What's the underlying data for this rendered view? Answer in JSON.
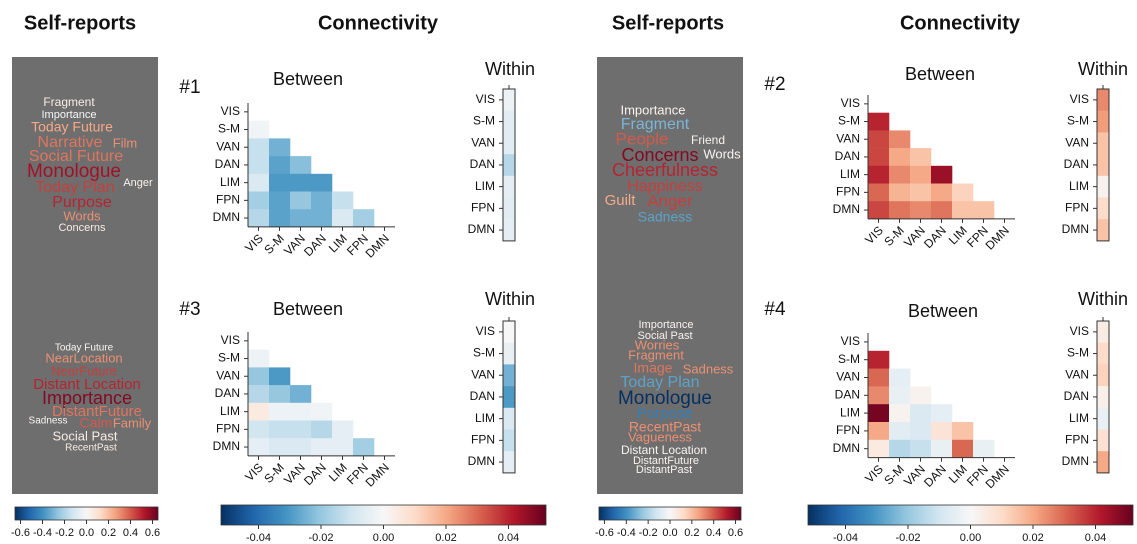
{
  "titles": [
    "Self-reports",
    "Connectivity",
    "Self-reports",
    "Connectivity"
  ],
  "colormap": [
    "#053061",
    "#2166ac",
    "#4393c3",
    "#92c5de",
    "#d1e5f0",
    "#f7f7f7",
    "#fddbc7",
    "#f4a582",
    "#d6604d",
    "#b2182b",
    "#67001f"
  ],
  "wordclouds": [
    {
      "words": [
        {
          "text": "Fragment",
          "value": 0.05
        },
        {
          "text": "Importance",
          "value": 0.0
        },
        {
          "text": "Today Future",
          "value": 0.25
        },
        {
          "text": "Narrative",
          "value": 0.35
        },
        {
          "text": "Film",
          "value": 0.3
        },
        {
          "text": "Social Future",
          "value": 0.35
        },
        {
          "text": "Monologue",
          "value": 0.55
        },
        {
          "text": "Anger",
          "value": 0.02
        },
        {
          "text": "Today Plan",
          "value": 0.45
        },
        {
          "text": "Purpose",
          "value": 0.5
        },
        {
          "text": "Words",
          "value": 0.3
        },
        {
          "text": "Concerns",
          "value": 0.05
        }
      ]
    },
    {
      "words": [
        {
          "text": "Today Future",
          "value": 0.02
        },
        {
          "text": "NearLocation",
          "value": 0.3
        },
        {
          "text": "NearFuture",
          "value": 0.45
        },
        {
          "text": "Distant Location",
          "value": 0.5
        },
        {
          "text": "Importance",
          "value": 0.6
        },
        {
          "text": "DistantFuture",
          "value": 0.35
        },
        {
          "text": "Sadness",
          "value": 0.02
        },
        {
          "text": "Calm",
          "value": 0.4
        },
        {
          "text": "Family",
          "value": 0.3
        },
        {
          "text": "Social Past",
          "value": 0.05
        },
        {
          "text": "RecentPast",
          "value": 0.05
        }
      ]
    },
    {
      "words": [
        {
          "text": "Importance",
          "value": 0.02
        },
        {
          "text": "Fragment",
          "value": -0.3
        },
        {
          "text": "People",
          "value": 0.4
        },
        {
          "text": "Friend",
          "value": 0.02
        },
        {
          "text": "Concerns",
          "value": 0.6
        },
        {
          "text": "Words",
          "value": 0.02
        },
        {
          "text": "Cheerfulness",
          "value": 0.5
        },
        {
          "text": "Happiness",
          "value": 0.45
        },
        {
          "text": "Guilt",
          "value": 0.25
        },
        {
          "text": "Anger",
          "value": 0.45
        },
        {
          "text": "Sadness",
          "value": -0.35
        }
      ]
    },
    {
      "words": [
        {
          "text": "Importance",
          "value": 0.02
        },
        {
          "text": "Social Past",
          "value": 0.02
        },
        {
          "text": "Worries",
          "value": 0.3
        },
        {
          "text": "Fragment",
          "value": 0.3
        },
        {
          "text": "Image",
          "value": 0.35
        },
        {
          "text": "Sadness",
          "value": 0.3
        },
        {
          "text": "Today Plan",
          "value": -0.35
        },
        {
          "text": "Monologue",
          "value": -0.65
        },
        {
          "text": "Purpose",
          "value": -0.45
        },
        {
          "text": "RecentPast",
          "value": 0.3
        },
        {
          "text": "Vagueness",
          "value": 0.3
        },
        {
          "text": "Distant Location",
          "value": 0.02
        },
        {
          "text": "DistantFuture",
          "value": 0.02
        },
        {
          "text": "DistantPast",
          "value": 0.02
        }
      ]
    }
  ],
  "chart_data": [
    {
      "type": "heatmap",
      "label": "#1",
      "title": "Between",
      "rows": [
        "VIS",
        "S-M",
        "VAN",
        "DAN",
        "LIM",
        "FPN",
        "DMN"
      ],
      "columns": [
        "VIS",
        "S-M",
        "VAN",
        "DAN",
        "LIM",
        "FPN",
        "DMN"
      ],
      "values": [
        [
          null,
          null,
          null,
          null,
          null,
          null,
          null
        ],
        [
          -0.002,
          null,
          null,
          null,
          null,
          null,
          null
        ],
        [
          -0.012,
          -0.025,
          null,
          null,
          null,
          null,
          null
        ],
        [
          -0.012,
          -0.028,
          -0.022,
          null,
          null,
          null,
          null
        ],
        [
          -0.008,
          -0.03,
          -0.03,
          -0.03,
          null,
          null,
          null
        ],
        [
          -0.018,
          -0.028,
          -0.02,
          -0.025,
          -0.012,
          null,
          null
        ],
        [
          -0.015,
          -0.028,
          -0.025,
          -0.025,
          -0.008,
          -0.018,
          null
        ]
      ]
    },
    {
      "type": "heatmap",
      "title": "Within",
      "rows": [
        "VIS",
        "S-M",
        "VAN",
        "DAN",
        "LIM",
        "FPN",
        "DMN"
      ],
      "values": [
        -0.003,
        -0.006,
        -0.006,
        -0.015,
        -0.005,
        -0.006,
        -0.005
      ]
    },
    {
      "type": "heatmap",
      "label": "#3",
      "title": "Between",
      "rows": [
        "VIS",
        "S-M",
        "VAN",
        "DAN",
        "LIM",
        "FPN",
        "DMN"
      ],
      "columns": [
        "VIS",
        "S-M",
        "VAN",
        "DAN",
        "LIM",
        "FPN",
        "DMN"
      ],
      "values": [
        [
          null,
          null,
          null,
          null,
          null,
          null,
          null
        ],
        [
          -0.003,
          null,
          null,
          null,
          null,
          null,
          null
        ],
        [
          -0.02,
          -0.03,
          null,
          null,
          null,
          null,
          null
        ],
        [
          -0.015,
          -0.02,
          -0.025,
          null,
          null,
          null,
          null
        ],
        [
          0.005,
          -0.003,
          -0.003,
          -0.002,
          null,
          null,
          null
        ],
        [
          -0.01,
          -0.012,
          -0.012,
          -0.015,
          -0.005,
          null,
          null
        ],
        [
          -0.005,
          -0.008,
          -0.008,
          -0.005,
          -0.005,
          -0.018,
          null
        ]
      ]
    },
    {
      "type": "heatmap",
      "title": "Within",
      "rows": [
        "VIS",
        "S-M",
        "VAN",
        "DAN",
        "LIM",
        "FPN",
        "DMN"
      ],
      "values": [
        0.0,
        -0.004,
        -0.025,
        -0.03,
        -0.008,
        -0.012,
        -0.005
      ]
    },
    {
      "type": "heatmap",
      "label": "#2",
      "title": "Between",
      "rows": [
        "VIS",
        "S-M",
        "VAN",
        "DAN",
        "LIM",
        "FPN",
        "DMN"
      ],
      "columns": [
        "VIS",
        "S-M",
        "VAN",
        "DAN",
        "LIM",
        "FPN",
        "DMN"
      ],
      "values": [
        [
          null,
          null,
          null,
          null,
          null,
          null,
          null
        ],
        [
          0.04,
          null,
          null,
          null,
          null,
          null,
          null
        ],
        [
          0.035,
          0.025,
          null,
          null,
          null,
          null,
          null
        ],
        [
          0.035,
          0.02,
          0.015,
          null,
          null,
          null,
          null
        ],
        [
          0.04,
          0.025,
          0.02,
          0.045,
          null,
          null,
          null
        ],
        [
          0.03,
          0.018,
          0.015,
          0.02,
          0.012,
          null,
          null
        ],
        [
          0.035,
          0.028,
          0.025,
          0.028,
          0.015,
          0.015,
          null
        ]
      ]
    },
    {
      "type": "heatmap",
      "title": "Within",
      "rows": [
        "VIS",
        "S-M",
        "VAN",
        "DAN",
        "LIM",
        "FPN",
        "DMN"
      ],
      "values": [
        0.025,
        0.022,
        0.015,
        0.015,
        0.002,
        0.01,
        0.015
      ]
    },
    {
      "type": "heatmap",
      "label": "#4",
      "title": "Between",
      "rows": [
        "VIS",
        "S-M",
        "VAN",
        "DAN",
        "LIM",
        "FPN",
        "DMN"
      ],
      "columns": [
        "VIS",
        "S-M",
        "VAN",
        "DAN",
        "LIM",
        "FPN",
        "DMN"
      ],
      "values": [
        [
          null,
          null,
          null,
          null,
          null,
          null,
          null
        ],
        [
          0.04,
          null,
          null,
          null,
          null,
          null,
          null
        ],
        [
          0.03,
          -0.005,
          null,
          null,
          null,
          null,
          null
        ],
        [
          0.025,
          -0.004,
          0.002,
          null,
          null,
          null,
          null
        ],
        [
          0.05,
          0.002,
          -0.008,
          -0.005,
          null,
          null,
          null
        ],
        [
          0.02,
          -0.006,
          -0.008,
          0.007,
          0.015,
          null,
          null
        ],
        [
          0.005,
          -0.015,
          -0.012,
          -0.004,
          0.03,
          -0.004,
          null
        ]
      ]
    },
    {
      "type": "heatmap",
      "title": "Within",
      "rows": [
        "VIS",
        "S-M",
        "VAN",
        "DAN",
        "LIM",
        "FPN",
        "DMN"
      ],
      "values": [
        0.004,
        0.01,
        0.012,
        0.003,
        -0.004,
        0.008,
        0.02
      ]
    },
    {
      "type": "colorbar",
      "xlim": [
        -0.65,
        0.65
      ],
      "xticks": [
        -0.6,
        -0.4,
        -0.2,
        {
          "value": 0,
          "label": "0.0"
        },
        0.2,
        0.4,
        0.6
      ]
    },
    {
      "type": "colorbar",
      "xlim": [
        -0.052,
        0.052
      ],
      "xticks": [
        -0.04,
        -0.02,
        {
          "value": 0,
          "label": "0.00"
        },
        0.02,
        0.04
      ]
    },
    {
      "type": "colorbar",
      "xlim": [
        -0.65,
        0.65
      ],
      "xticks": [
        -0.6,
        -0.4,
        -0.2,
        {
          "value": 0,
          "label": "0.0"
        },
        0.2,
        0.4,
        0.6
      ]
    },
    {
      "type": "colorbar",
      "xlim": [
        -0.052,
        0.052
      ],
      "xticks": [
        -0.04,
        -0.02,
        {
          "value": 0,
          "label": "0.00"
        },
        0.02,
        0.04
      ]
    }
  ]
}
